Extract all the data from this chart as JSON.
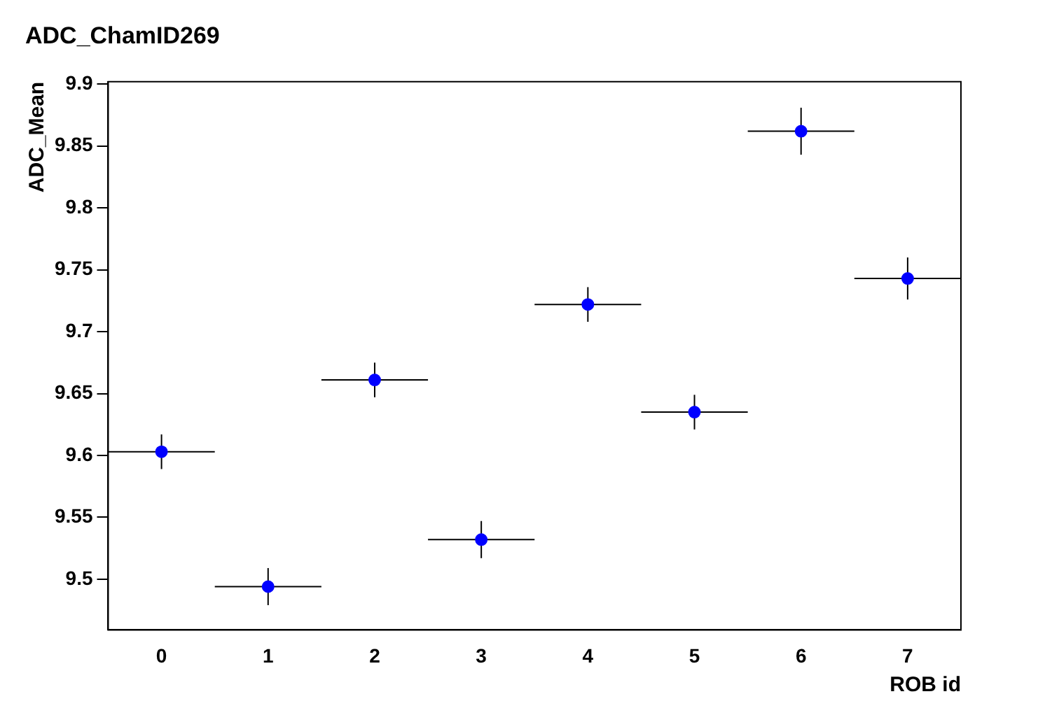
{
  "chart_data": {
    "type": "scatter",
    "title": "ADC_ChamID269",
    "xlabel": "ROB id",
    "ylabel": "ADC_Mean",
    "x": [
      0,
      1,
      2,
      3,
      4,
      5,
      6,
      7
    ],
    "values": [
      9.603,
      9.494,
      9.661,
      9.532,
      9.722,
      9.635,
      9.862,
      9.743
    ],
    "errors": [
      0.014,
      0.015,
      0.014,
      0.015,
      0.014,
      0.014,
      0.019,
      0.017
    ],
    "xerrors": [
      0.5,
      0.5,
      0.5,
      0.5,
      0.5,
      0.5,
      0.5,
      0.5
    ],
    "color": "#0000ff",
    "marker": "circle",
    "xlim": [
      -0.5,
      7.5
    ],
    "xticks": [
      0,
      1,
      2,
      3,
      4,
      5,
      6,
      7
    ],
    "ylim": [
      9.459,
      9.902
    ],
    "yticks": [
      9.5,
      9.55,
      9.6,
      9.65,
      9.7,
      9.75,
      9.8,
      9.85,
      9.9
    ],
    "grid": false,
    "legend": false
  }
}
